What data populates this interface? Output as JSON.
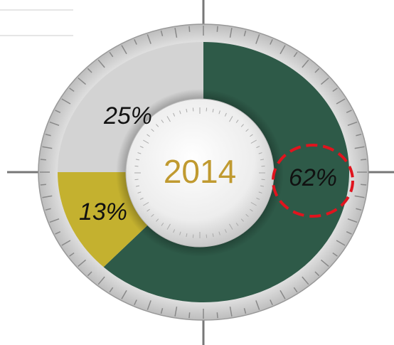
{
  "chart_data": {
    "type": "donut",
    "center_label": "2014",
    "values": [
      62,
      13,
      25
    ],
    "value_labels": [
      "62%",
      "13%",
      "25%"
    ],
    "colors": [
      "#2e5a48",
      "#c4b12f",
      "#d3d3d3"
    ],
    "highlight_index": 0
  }
}
